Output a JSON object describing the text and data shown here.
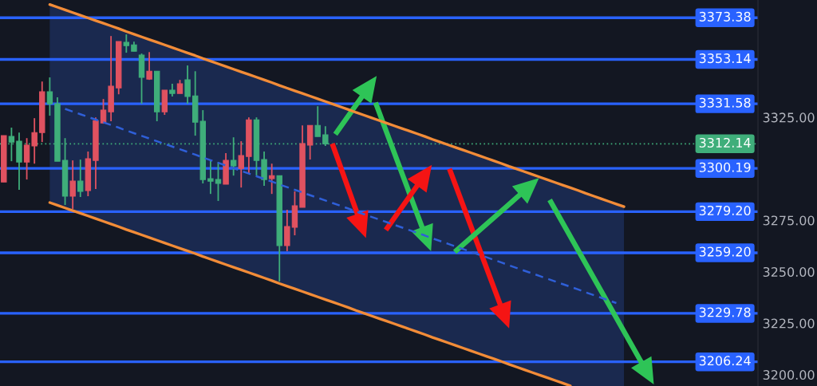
{
  "chart_data": {
    "type": "candlestick",
    "categories": [
      null,
      null,
      null,
      null,
      null,
      null,
      null,
      null,
      null,
      null,
      null,
      null,
      null,
      null,
      null,
      null,
      null,
      null,
      null,
      null,
      null,
      null,
      null,
      null,
      null,
      null,
      null,
      null,
      null,
      null,
      null,
      null,
      null,
      null,
      null,
      null,
      null,
      null,
      null,
      null,
      null,
      null,
      null,
      null,
      null,
      null,
      null,
      null,
      null,
      null,
      null,
      null,
      null,
      null,
      null,
      null,
      null,
      null,
      null,
      null,
      null,
      null,
      null,
      null,
      null,
      null,
      null,
      null,
      null,
      null,
      null,
      null,
      null,
      null,
      null,
      null,
      null,
      null,
      null,
      null,
      null,
      null,
      null,
      null,
      null,
      null,
      null,
      null,
      null,
      null,
      null,
      null,
      null,
      null,
      null,
      null,
      null,
      null,
      null
    ],
    "ohlc": [
      [
        3293.6,
        3316.1,
        3293.6,
        3316.1
      ],
      [
        3315.7,
        3320.0,
        3303.7,
        3313.0
      ],
      [
        3313.4,
        3317.6,
        3289.8,
        3303.3
      ],
      [
        3303.3,
        3314.9,
        3294.8,
        3311.5
      ],
      [
        3311.1,
        3324.6,
        3302.5,
        3317.6
      ],
      [
        3317.6,
        3342.4,
        3313.0,
        3337.4
      ],
      [
        3337.4,
        3344.4,
        3325.8,
        3331.6
      ],
      [
        3331.6,
        3334.7,
        3303.7,
        3303.7
      ],
      [
        3304.1,
        3314.9,
        3282.4,
        3286.7
      ],
      [
        3286.7,
        3304.1,
        3280.5,
        3294.0
      ],
      [
        3294.0,
        3304.5,
        3286.3,
        3289.0
      ],
      [
        3289.4,
        3308.4,
        3286.7,
        3304.9
      ],
      [
        3304.1,
        3325.0,
        3290.2,
        3323.4
      ],
      [
        3322.3,
        3333.9,
        3321.9,
        3328.5
      ],
      [
        3327.7,
        3364.5,
        3323.1,
        3340.1
      ],
      [
        3339.3,
        3361.8,
        3336.2,
        3361.8
      ],
      [
        3361.4,
        3365.3,
        3356.4,
        3359.8
      ],
      [
        3360.2,
        3361.8,
        3357.1,
        3357.1
      ],
      [
        3355.2,
        3356.0,
        3331.6,
        3344.4
      ],
      [
        3343.6,
        3356.7,
        3343.2,
        3347.4
      ],
      [
        3347.4,
        3347.4,
        3323.1,
        3327.7
      ],
      [
        3327.7,
        3338.2,
        3326.2,
        3338.2
      ],
      [
        3338.2,
        3341.3,
        3335.1,
        3336.6
      ],
      [
        3336.6,
        3343.2,
        3336.6,
        3341.3
      ],
      [
        3343.2,
        3350.2,
        3331.6,
        3335.1
      ],
      [
        3335.4,
        3347.4,
        3316.1,
        3322.7
      ],
      [
        3323.1,
        3328.5,
        3292.9,
        3294.8
      ],
      [
        3295.2,
        3304.5,
        3287.8,
        3294.0
      ],
      [
        3294.8,
        3303.3,
        3284.4,
        3292.9
      ],
      [
        3292.5,
        3307.6,
        3292.5,
        3304.1
      ],
      [
        3304.1,
        3315.3,
        3296.7,
        3301.4
      ],
      [
        3300.2,
        3313.4,
        3290.9,
        3306.4
      ],
      [
        3306.0,
        3325.0,
        3297.9,
        3323.8
      ],
      [
        3323.8,
        3325.0,
        3296.7,
        3304.1
      ],
      [
        3304.5,
        3308.4,
        3291.7,
        3294.8
      ],
      [
        3295.2,
        3302.5,
        3287.8,
        3296.7
      ],
      [
        3296.7,
        3296.7,
        3245.3,
        3262.7
      ],
      [
        3262.7,
        3280.1,
        3260.0,
        3272.0
      ],
      [
        3271.6,
        3289.0,
        3267.7,
        3282.0
      ],
      [
        3281.3,
        3321.1,
        3281.3,
        3312.2
      ],
      [
        3311.5,
        3321.1,
        3304.5,
        3321.1
      ],
      [
        3321.1,
        3330.4,
        3315.7,
        3315.7
      ],
      [
        3316.5,
        3320.7,
        3311.1,
        3312.14
      ],
      null,
      null,
      null,
      null,
      null,
      null,
      null,
      null,
      null,
      null,
      null,
      null,
      null,
      null,
      null,
      null,
      null,
      null,
      null,
      null,
      null,
      null,
      null,
      null,
      null,
      null,
      null,
      null,
      null,
      null,
      null,
      null,
      null,
      null,
      null,
      null,
      null,
      null,
      null,
      null,
      null,
      null,
      null,
      null,
      null,
      null,
      null,
      null,
      null,
      null,
      null,
      null,
      null,
      null,
      null,
      null
    ],
    "colors": [
      "#e05260",
      "#3fae7a",
      "#3fae7a",
      "#e05260",
      "#e05260",
      "#e05260",
      "#3fae7a",
      "#3fae7a",
      "#3fae7a",
      "#e05260",
      "#3fae7a",
      "#e05260",
      "#e05260",
      "#e05260",
      "#e05260",
      "#e05260",
      "#3fae7a",
      "#3fae7a",
      "#3fae7a",
      "#e05260",
      "#3fae7a",
      "#e05260",
      "#3fae7a",
      "#e05260",
      "#3fae7a",
      "#3fae7a",
      "#3fae7a",
      "#3fae7a",
      "#3fae7a",
      "#e05260",
      "#3fae7a",
      "#e05260",
      "#e05260",
      "#3fae7a",
      "#3fae7a",
      "#e05260",
      "#3fae7a",
      "#e05260",
      "#e05260",
      "#e05260",
      "#e05260",
      "#3fae7a",
      "#3fae7a",
      null,
      null,
      null,
      null,
      null,
      null,
      null,
      null,
      null,
      null,
      null,
      null,
      null,
      null,
      null,
      null,
      null,
      null,
      null,
      null,
      null,
      null,
      null,
      null,
      null,
      null,
      null,
      null,
      null,
      null,
      null,
      null,
      null,
      null,
      null,
      null,
      null,
      null,
      null,
      null,
      null,
      null,
      null,
      null,
      null,
      null,
      null,
      null,
      null,
      null,
      null,
      null,
      null,
      null,
      null,
      null
    ],
    "series": [
      {
        "type": "line",
        "color": "#f28c38",
        "values": [
          null,
          null,
          null,
          null,
          null,
          null,
          3379.8,
          3378.5,
          3377.2,
          3375.9,
          3374.6,
          3373.3,
          3372.0,
          3370.7,
          3369.4,
          3368.1,
          3366.7,
          3365.4,
          3364.1,
          3362.8,
          3361.5,
          3360.2,
          3358.9,
          3357.6,
          3356.3,
          3355.0,
          3353.6,
          3352.3,
          3351.0,
          3349.7,
          3348.4,
          3347.1,
          3345.8,
          3344.5,
          3343.2,
          3341.9,
          3340.5,
          3339.2,
          3337.9,
          3336.6,
          3335.3,
          3334.0,
          3332.7,
          3331.4,
          3330.1,
          3328.8,
          3327.4,
          3326.1,
          3324.8,
          3323.5,
          3322.2,
          3320.9,
          3319.6,
          3318.3,
          3317.0,
          3315.7,
          3314.3,
          3313.0,
          3311.7,
          3310.4,
          3309.1,
          3307.8,
          3306.5,
          3305.2,
          3303.9,
          3302.6,
          3301.2,
          3299.9,
          3298.6,
          3297.3,
          3296.0,
          3294.7,
          3293.4,
          3292.1,
          3290.8,
          3289.5,
          3288.1,
          3286.8,
          3285.5,
          3284.2,
          3282.9,
          3281.6,
          null,
          null,
          null,
          null,
          null,
          null,
          null,
          null,
          null,
          null,
          null,
          null,
          null,
          null,
          null,
          null,
          null
        ]
      },
      {
        "type": "line",
        "color": "#f28c38",
        "values": [
          null,
          null,
          null,
          null,
          null,
          null,
          3283.6,
          3282.3,
          3281.0,
          3279.7,
          3278.4,
          3277.1,
          3275.8,
          3274.5,
          3273.2,
          3271.9,
          3270.5,
          3269.2,
          3267.9,
          3266.6,
          3265.3,
          3264.0,
          3262.7,
          3261.4,
          3260.1,
          3258.8,
          3257.4,
          3256.1,
          3254.8,
          3253.5,
          3252.2,
          3250.9,
          3249.6,
          3248.3,
          3247.0,
          3245.7,
          3244.3,
          3243.0,
          3241.7,
          3240.4,
          3239.1,
          3237.8,
          3236.5,
          3235.2,
          3233.9,
          3232.6,
          3231.2,
          3229.9,
          3228.6,
          3227.3,
          3226.0,
          3224.7,
          3223.4,
          3222.1,
          3220.8,
          3219.5,
          3218.1,
          3216.8,
          3215.5,
          3214.2,
          3212.9,
          3211.6,
          3210.3,
          3209.0,
          3207.7,
          3206.4,
          3205.0,
          3203.7,
          3202.4,
          3201.1,
          3199.8,
          3198.5,
          3197.2,
          3195.9,
          3194.6,
          null,
          null,
          null,
          null,
          null,
          null,
          null,
          null,
          null,
          null,
          null,
          null,
          null,
          null,
          null,
          null,
          null,
          null,
          null,
          null,
          null,
          null,
          null,
          null
        ]
      },
      {
        "type": "line",
        "color": "#2f5fd8",
        "line_style": "dashed",
        "values": [
          null,
          null,
          null,
          null,
          null,
          null,
          null,
          null,
          3329.1,
          3327.8,
          3326.5,
          3325.2,
          3323.9,
          3322.6,
          3321.3,
          3320.0,
          3318.6,
          3317.3,
          3316.0,
          3314.7,
          3313.4,
          3312.1,
          3310.8,
          3309.5,
          3308.2,
          3306.9,
          3305.5,
          3304.2,
          3302.9,
          3301.6,
          3300.3,
          3299.0,
          3297.7,
          3296.4,
          3295.1,
          3293.8,
          3292.4,
          3291.1,
          3289.8,
          3288.5,
          3287.2,
          3285.9,
          3284.6,
          3283.3,
          3282.0,
          3280.7,
          3279.3,
          3278.0,
          3276.7,
          3275.4,
          3274.1,
          3272.8,
          3271.5,
          3270.2,
          3268.9,
          3267.6,
          3266.2,
          3264.9,
          3263.6,
          3262.3,
          3261.0,
          3259.7,
          3258.4,
          3257.1,
          3255.8,
          3254.5,
          3253.1,
          3251.8,
          3250.5,
          3249.2,
          3247.9,
          3246.6,
          3245.3,
          3244.0,
          3242.7,
          3241.4,
          3240.0,
          3238.7,
          3237.4,
          3236.1,
          3234.8,
          null,
          null,
          null,
          null,
          null,
          null,
          null,
          null,
          null,
          null,
          null,
          null,
          null,
          null,
          null,
          null,
          null,
          null
        ],
        "lower": [
          null,
          null,
          null,
          null,
          null,
          null,
          3283.6,
          3282.3,
          3281.0,
          3279.7,
          3278.4,
          3277.1,
          3275.8,
          3274.5,
          3273.2,
          3271.9,
          3270.5,
          3269.2,
          3267.9,
          3266.6,
          3265.3,
          3264.0,
          3262.7,
          3261.4,
          3260.1,
          3258.8,
          3257.4,
          3256.1,
          3254.8,
          3253.5,
          3252.2,
          3250.9,
          3249.6,
          3248.3,
          3247.0,
          3245.7,
          3244.3,
          3243.0,
          3241.7,
          3240.4,
          3239.1,
          3237.8,
          3236.5,
          3235.2,
          3233.9,
          3232.6,
          3231.2,
          3229.9,
          3228.6,
          3227.3,
          3226.0,
          3224.7,
          3223.4,
          3222.1,
          3220.8,
          3219.5,
          3218.1,
          3216.8,
          3215.5,
          3214.2,
          3212.9,
          3211.6,
          3210.3,
          3209.0,
          3207.7,
          3206.4,
          3205.0,
          3203.7,
          3202.4,
          3201.1,
          3199.8,
          3198.5,
          3197.2,
          3195.9,
          3194.6,
          3194.5,
          3194.5,
          3194.5,
          3194.5,
          3194.5,
          3194.5,
          3194.5,
          null,
          null,
          null,
          null,
          null,
          null,
          null,
          null,
          null,
          null,
          null,
          null,
          null,
          null,
          null,
          null,
          null
        ],
        "upper": [
          null,
          null,
          null,
          null,
          null,
          null,
          3379.8,
          3378.5,
          3377.2,
          3375.9,
          3374.6,
          3373.3,
          3372.0,
          3370.7,
          3369.4,
          3368.1,
          3366.7,
          3365.4,
          3364.1,
          3362.8,
          3361.5,
          3360.2,
          3358.9,
          3357.6,
          3356.3,
          3355.0,
          3353.6,
          3352.3,
          3351.0,
          3349.7,
          3348.4,
          3347.1,
          3345.8,
          3344.5,
          3343.2,
          3341.9,
          3340.5,
          3339.2,
          3337.9,
          3336.6,
          3335.3,
          3334.0,
          3332.7,
          3331.4,
          3330.1,
          3328.8,
          3327.4,
          3326.1,
          3324.8,
          3323.5,
          3322.2,
          3320.9,
          3319.6,
          3318.3,
          3317.0,
          3315.7,
          3314.3,
          3313.0,
          3311.7,
          3310.4,
          3309.1,
          3307.8,
          3306.5,
          3305.2,
          3303.9,
          3302.6,
          3301.2,
          3299.9,
          3298.6,
          3297.3,
          3296.0,
          3294.7,
          3293.4,
          3292.1,
          3290.8,
          3289.5,
          3288.1,
          3286.8,
          3285.5,
          3284.2,
          3282.9,
          3281.6,
          null,
          null,
          null,
          null,
          null,
          null,
          null,
          null,
          null,
          null,
          null,
          null,
          null,
          null,
          null,
          null,
          null
        ]
      }
    ],
    "ref_lines": [
      {
        "axis": "y",
        "value": 3373.38,
        "label": "3373.38",
        "color": "#2962ff"
      },
      {
        "axis": "y",
        "value": 3353.14,
        "label": "3353.14",
        "color": "#2962ff"
      },
      {
        "axis": "y",
        "value": 3331.58,
        "label": "3331.58",
        "color": "#2962ff"
      },
      {
        "axis": "y",
        "value": 3312.14,
        "label": "3312.14",
        "color": "#3fae7a",
        "line_style": "dotted"
      },
      {
        "axis": "y",
        "value": 3300.19,
        "label": "3300.19",
        "color": "#2962ff"
      },
      {
        "axis": "y",
        "value": 3279.2,
        "label": "3279.20",
        "color": "#2962ff"
      },
      {
        "axis": "y",
        "value": 3259.2,
        "label": "3259.20",
        "color": "#2962ff"
      },
      {
        "axis": "y",
        "value": 3229.78,
        "label": "3229.78",
        "color": "#2962ff"
      },
      {
        "axis": "y",
        "value": 3206.24,
        "label": "3206.24",
        "color": "#2962ff"
      }
    ],
    "ylim": [
      3194.5,
      3382.0
    ],
    "yticks": [
      {
        "value": 3200,
        "label": "3200.00"
      },
      {
        "value": 3225,
        "label": "3225.00"
      },
      {
        "value": 3250,
        "label": "3250.00"
      },
      {
        "value": 3275,
        "label": "3275.00"
      },
      {
        "value": 3325,
        "label": "3325.00"
      }
    ],
    "tick_labels": "y"
  }
}
